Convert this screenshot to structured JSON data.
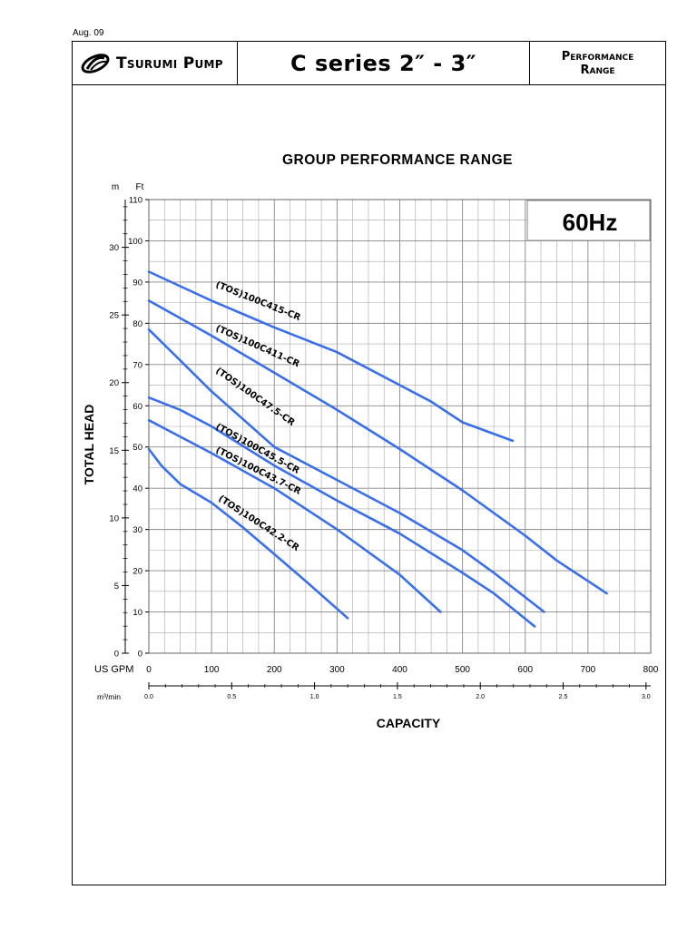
{
  "document": {
    "date": "Aug. 09",
    "brand": "Tsurumi Pump",
    "series": "C series  2″ - 3″",
    "doc_type_line1": "Performance",
    "doc_type_line2": "Range"
  },
  "chart_data": {
    "type": "line",
    "title": "GROUP PERFORMANCE RANGE",
    "frequency_label": "60Hz",
    "ylabel": "TOTAL HEAD",
    "xlabel": "CAPACITY",
    "y_primary": {
      "unit": "Ft",
      "ylim": [
        0,
        110
      ],
      "ticks": [
        0,
        10,
        20,
        30,
        40,
        50,
        60,
        70,
        80,
        90,
        100,
        110
      ]
    },
    "y_secondary": {
      "unit": "m",
      "ticks": [
        0,
        5,
        10,
        15,
        20,
        25,
        30
      ]
    },
    "x_primary": {
      "unit": "US GPM",
      "xlim": [
        0,
        800
      ],
      "ticks": [
        0,
        100,
        200,
        300,
        400,
        500,
        600,
        700,
        800
      ]
    },
    "x_secondary": {
      "unit": "m³/min",
      "ticks": [
        "0.0",
        "0.5",
        "1.0",
        "1.5",
        "2.0",
        "2.5",
        "3.0"
      ]
    },
    "grid": true,
    "series_color": "#3a6fe8",
    "series": [
      {
        "name": "(TOS)100C415-CR",
        "x": [
          0,
          50,
          100,
          200,
          300,
          400,
          450,
          500,
          580
        ],
        "y": [
          92.5,
          89,
          85.5,
          79,
          73,
          65,
          61,
          56,
          51.5
        ]
      },
      {
        "name": "(TOS)100C411-CR",
        "x": [
          0,
          100,
          200,
          300,
          400,
          500,
          600,
          650,
          730
        ],
        "y": [
          85.5,
          77,
          68,
          59,
          49.5,
          39.5,
          28.5,
          22.5,
          14.5
        ]
      },
      {
        "name": "(TOS)100C47.5-CR",
        "x": [
          0,
          50,
          100,
          200,
          300,
          400,
          500,
          550,
          630
        ],
        "y": [
          78.5,
          71,
          63.5,
          50,
          42,
          34,
          25,
          19.5,
          10
        ]
      },
      {
        "name": "(TOS)100C45.5-CR",
        "x": [
          0,
          50,
          100,
          200,
          300,
          400,
          500,
          550,
          615
        ],
        "y": [
          62,
          59,
          55,
          45.5,
          37,
          29,
          19.5,
          14.5,
          6.5
        ]
      },
      {
        "name": "(TOS)100C43.7-CR",
        "x": [
          0,
          50,
          100,
          200,
          300,
          400,
          465
        ],
        "y": [
          56.5,
          52.5,
          48.5,
          40,
          30,
          19,
          10
        ]
      },
      {
        "name": "(TOS)100C42.2-CR",
        "x": [
          0,
          20,
          50,
          100,
          150,
          200,
          250,
          317
        ],
        "y": [
          49.5,
          45.5,
          41,
          36.5,
          30.5,
          24,
          17.5,
          8.5
        ]
      }
    ]
  }
}
